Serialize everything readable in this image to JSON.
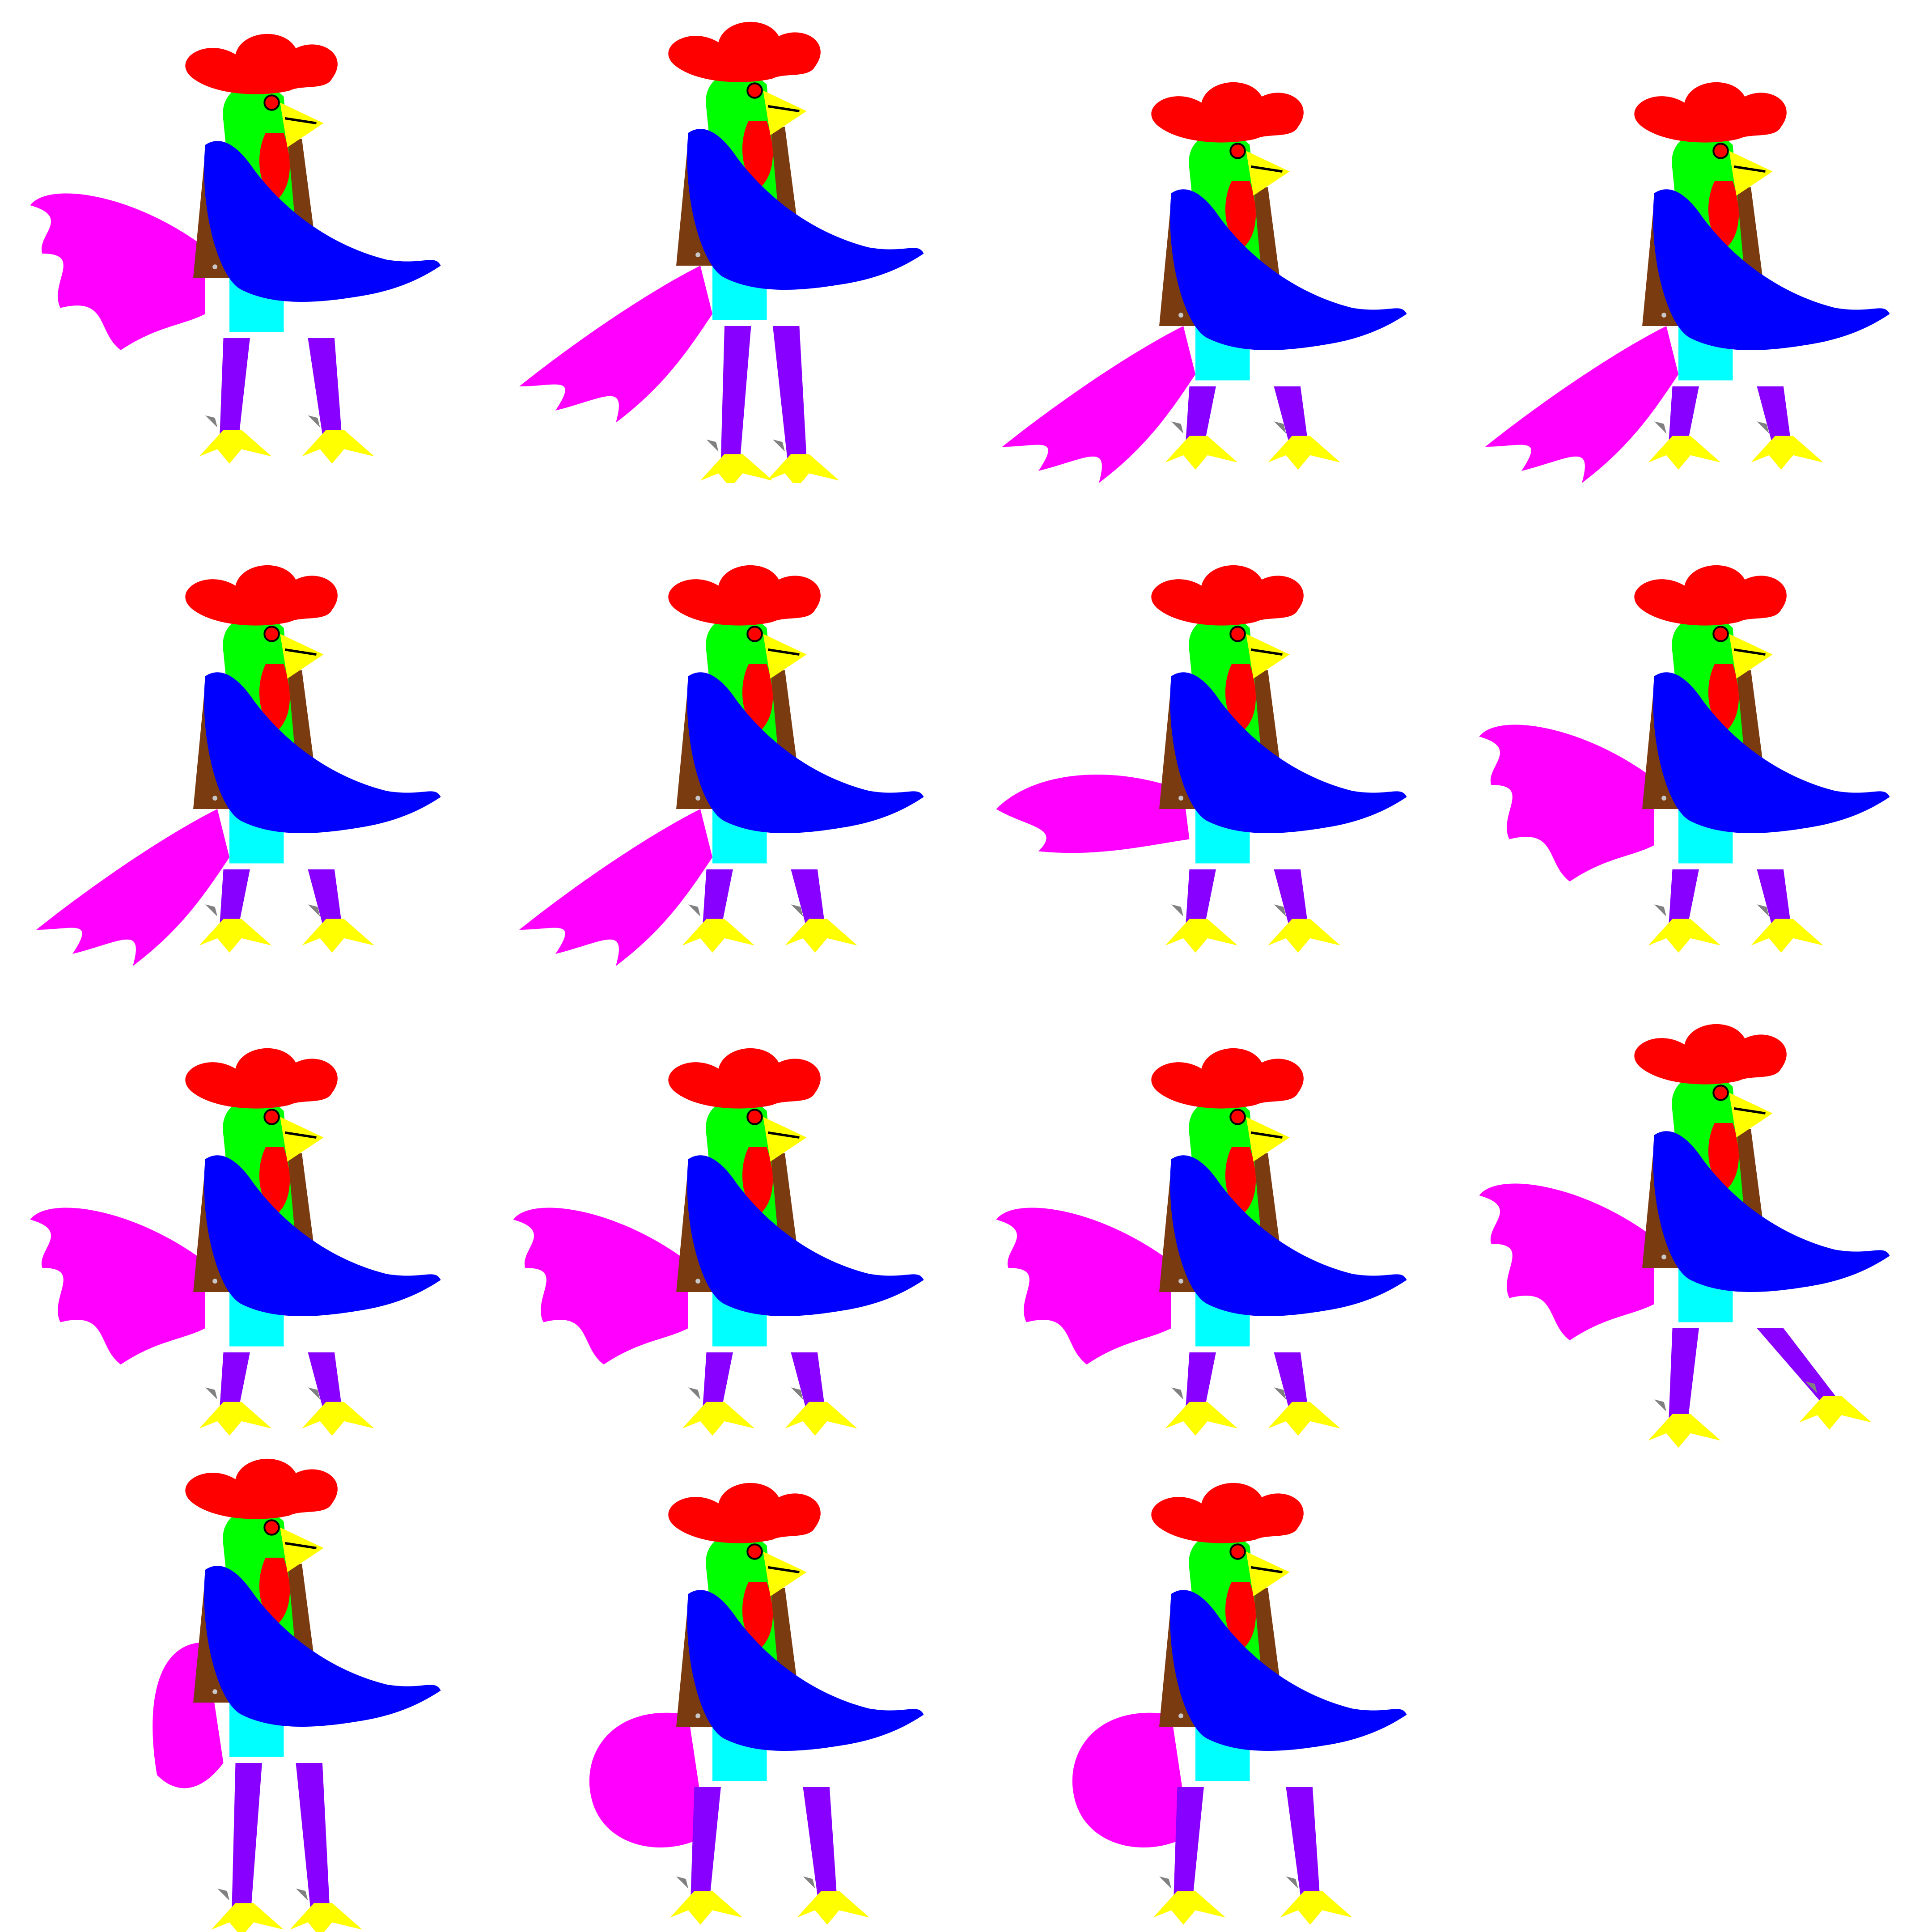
{
  "sheet": {
    "background": "#ffffff",
    "columns": 4,
    "rows": 4,
    "frame_count": 15
  },
  "palette": {
    "comb": "#ff0000",
    "head": "#00ff00",
    "beak": "#ffff00",
    "eye": "#ff0000",
    "jacket": "#7a3b10",
    "jacket_studs": "#c8c8c8",
    "undershirt": "#00ffff",
    "wing": "#0000ff",
    "tail": "#ff00ff",
    "legs": "#8800ff",
    "feet": "#ffff00",
    "spurs": "#808080",
    "outline": "#000000"
  },
  "frames": [
    {
      "id": "frame-1",
      "pose": "idle-stand",
      "tail": "fan-left"
    },
    {
      "id": "frame-2",
      "pose": "stride",
      "tail": "sweep-down"
    },
    {
      "id": "frame-3",
      "pose": "crouch",
      "tail": "sweep-down"
    },
    {
      "id": "frame-4",
      "pose": "crouch",
      "tail": "sweep-down"
    },
    {
      "id": "frame-5",
      "pose": "crouch",
      "tail": "sweep-down"
    },
    {
      "id": "frame-6",
      "pose": "crouch",
      "tail": "sweep-down"
    },
    {
      "id": "frame-7",
      "pose": "crouch",
      "tail": "flat-left"
    },
    {
      "id": "frame-8",
      "pose": "crouch",
      "tail": "fan-left"
    },
    {
      "id": "frame-9",
      "pose": "crouch",
      "tail": "fan-left"
    },
    {
      "id": "frame-10",
      "pose": "crouch",
      "tail": "fan-left"
    },
    {
      "id": "frame-11",
      "pose": "crouch",
      "tail": "fan-left"
    },
    {
      "id": "frame-12",
      "pose": "kick",
      "tail": "fan-left"
    },
    {
      "id": "frame-13",
      "pose": "tall-stand",
      "tail": "upright"
    },
    {
      "id": "frame-14",
      "pose": "wide-stand",
      "tail": "round"
    },
    {
      "id": "frame-15",
      "pose": "wide-stand",
      "tail": "round"
    }
  ]
}
